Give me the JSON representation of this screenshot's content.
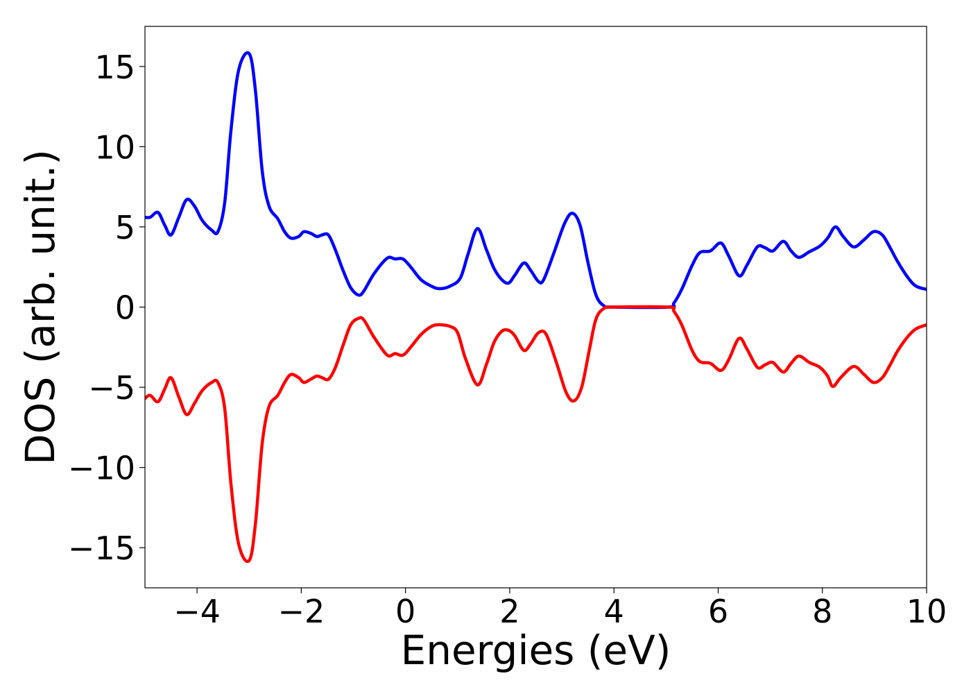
{
  "chart_data": {
    "type": "line",
    "title": "",
    "xlabel": "Energies (eV)",
    "ylabel": "DOS (arb. unit.)",
    "xlim": [
      -5,
      10
    ],
    "ylim": [
      -17.5,
      17.5
    ],
    "grid": false,
    "legend": "none",
    "x_ticks": [
      {
        "value": -4,
        "label": "−4"
      },
      {
        "value": -2,
        "label": "−2"
      },
      {
        "value": 0,
        "label": "0"
      },
      {
        "value": 2,
        "label": "2"
      },
      {
        "value": 4,
        "label": "4"
      },
      {
        "value": 6,
        "label": "6"
      },
      {
        "value": 8,
        "label": "8"
      },
      {
        "value": 10,
        "label": "10"
      }
    ],
    "y_ticks": [
      {
        "value": 15,
        "label": "15"
      },
      {
        "value": 10,
        "label": "10"
      },
      {
        "value": 5,
        "label": "5"
      },
      {
        "value": 0,
        "label": "0"
      },
      {
        "value": -5,
        "label": "−5"
      },
      {
        "value": -10,
        "label": "−10"
      },
      {
        "value": -15,
        "label": "−15"
      }
    ],
    "series": [
      {
        "color": "#0000ff",
        "points": [
          [
            -5.0,
            5.6
          ],
          [
            -4.9,
            5.6
          ],
          [
            -4.75,
            5.9
          ],
          [
            -4.62,
            5.1
          ],
          [
            -4.5,
            4.5
          ],
          [
            -4.35,
            5.6
          ],
          [
            -4.2,
            6.7
          ],
          [
            -4.05,
            6.3
          ],
          [
            -3.9,
            5.4
          ],
          [
            -3.72,
            4.8
          ],
          [
            -3.6,
            4.7
          ],
          [
            -3.47,
            6.5
          ],
          [
            -3.35,
            11.0
          ],
          [
            -3.2,
            14.8
          ],
          [
            -3.0,
            15.8
          ],
          [
            -2.88,
            13.5
          ],
          [
            -2.75,
            8.5
          ],
          [
            -2.62,
            6.3
          ],
          [
            -2.45,
            5.5
          ],
          [
            -2.32,
            4.7
          ],
          [
            -2.2,
            4.3
          ],
          [
            -2.05,
            4.4
          ],
          [
            -1.95,
            4.7
          ],
          [
            -1.82,
            4.6
          ],
          [
            -1.7,
            4.4
          ],
          [
            -1.6,
            4.5
          ],
          [
            -1.48,
            4.5
          ],
          [
            -1.35,
            3.6
          ],
          [
            -1.2,
            2.3
          ],
          [
            -1.05,
            1.2
          ],
          [
            -0.9,
            0.75
          ],
          [
            -0.8,
            1.0
          ],
          [
            -0.6,
            2.1
          ],
          [
            -0.35,
            3.05
          ],
          [
            -0.2,
            3.0
          ],
          [
            -0.05,
            3.0
          ],
          [
            0.1,
            2.5
          ],
          [
            0.3,
            1.7
          ],
          [
            0.5,
            1.3
          ],
          [
            0.65,
            1.15
          ],
          [
            0.85,
            1.3
          ],
          [
            1.05,
            1.8
          ],
          [
            1.2,
            3.3
          ],
          [
            1.38,
            4.9
          ],
          [
            1.55,
            3.6
          ],
          [
            1.7,
            2.4
          ],
          [
            1.85,
            1.7
          ],
          [
            1.98,
            1.5
          ],
          [
            2.1,
            2.0
          ],
          [
            2.27,
            2.75
          ],
          [
            2.4,
            2.3
          ],
          [
            2.55,
            1.6
          ],
          [
            2.65,
            1.7
          ],
          [
            2.85,
            3.4
          ],
          [
            3.05,
            5.2
          ],
          [
            3.2,
            5.85
          ],
          [
            3.35,
            5.1
          ],
          [
            3.5,
            2.8
          ],
          [
            3.65,
            0.8
          ],
          [
            3.8,
            0.1
          ],
          [
            4.0,
            0.0
          ],
          [
            5.05,
            0.0
          ],
          [
            5.15,
            0.25
          ],
          [
            5.3,
            1.1
          ],
          [
            5.5,
            2.6
          ],
          [
            5.65,
            3.4
          ],
          [
            5.85,
            3.5
          ],
          [
            6.05,
            4.0
          ],
          [
            6.2,
            3.2
          ],
          [
            6.4,
            1.95
          ],
          [
            6.55,
            2.6
          ],
          [
            6.75,
            3.75
          ],
          [
            6.9,
            3.7
          ],
          [
            7.05,
            3.5
          ],
          [
            7.25,
            4.1
          ],
          [
            7.4,
            3.5
          ],
          [
            7.55,
            3.1
          ],
          [
            7.75,
            3.45
          ],
          [
            7.95,
            3.8
          ],
          [
            8.1,
            4.3
          ],
          [
            8.25,
            5.0
          ],
          [
            8.4,
            4.4
          ],
          [
            8.6,
            3.75
          ],
          [
            8.8,
            4.2
          ],
          [
            8.98,
            4.7
          ],
          [
            9.15,
            4.5
          ],
          [
            9.3,
            3.7
          ],
          [
            9.45,
            2.8
          ],
          [
            9.65,
            1.8
          ],
          [
            9.8,
            1.3
          ],
          [
            10.0,
            1.1
          ]
        ]
      },
      {
        "color": "#ff0000",
        "points": [
          [
            -5.0,
            -5.7
          ],
          [
            -4.9,
            -5.5
          ],
          [
            -4.75,
            -5.9
          ],
          [
            -4.62,
            -5.1
          ],
          [
            -4.5,
            -4.4
          ],
          [
            -4.35,
            -5.6
          ],
          [
            -4.2,
            -6.7
          ],
          [
            -4.05,
            -6.0
          ],
          [
            -3.9,
            -5.2
          ],
          [
            -3.72,
            -4.7
          ],
          [
            -3.6,
            -4.7
          ],
          [
            -3.47,
            -6.3
          ],
          [
            -3.35,
            -11.0
          ],
          [
            -3.2,
            -14.8
          ],
          [
            -3.0,
            -15.8
          ],
          [
            -2.88,
            -13.5
          ],
          [
            -2.75,
            -8.5
          ],
          [
            -2.62,
            -6.2
          ],
          [
            -2.45,
            -5.5
          ],
          [
            -2.32,
            -4.7
          ],
          [
            -2.2,
            -4.2
          ],
          [
            -2.05,
            -4.4
          ],
          [
            -1.95,
            -4.7
          ],
          [
            -1.82,
            -4.5
          ],
          [
            -1.7,
            -4.3
          ],
          [
            -1.6,
            -4.4
          ],
          [
            -1.48,
            -4.5
          ],
          [
            -1.35,
            -3.8
          ],
          [
            -1.2,
            -2.4
          ],
          [
            -1.05,
            -1.1
          ],
          [
            -0.9,
            -0.7
          ],
          [
            -0.8,
            -0.8
          ],
          [
            -0.6,
            -1.9
          ],
          [
            -0.35,
            -3.0
          ],
          [
            -0.2,
            -2.9
          ],
          [
            -0.05,
            -3.0
          ],
          [
            0.1,
            -2.5
          ],
          [
            0.3,
            -1.7
          ],
          [
            0.5,
            -1.2
          ],
          [
            0.65,
            -1.1
          ],
          [
            0.85,
            -1.2
          ],
          [
            1.0,
            -1.6
          ],
          [
            1.15,
            -3.2
          ],
          [
            1.38,
            -4.85
          ],
          [
            1.55,
            -3.6
          ],
          [
            1.7,
            -2.2
          ],
          [
            1.85,
            -1.5
          ],
          [
            1.98,
            -1.45
          ],
          [
            2.1,
            -1.8
          ],
          [
            2.27,
            -2.7
          ],
          [
            2.4,
            -2.3
          ],
          [
            2.55,
            -1.6
          ],
          [
            2.7,
            -1.7
          ],
          [
            2.9,
            -3.5
          ],
          [
            3.08,
            -5.3
          ],
          [
            3.23,
            -5.85
          ],
          [
            3.38,
            -5.0
          ],
          [
            3.52,
            -2.8
          ],
          [
            3.65,
            -0.8
          ],
          [
            3.8,
            -0.1
          ],
          [
            4.0,
            0.0
          ],
          [
            5.05,
            0.0
          ],
          [
            5.15,
            -0.25
          ],
          [
            5.3,
            -1.1
          ],
          [
            5.5,
            -2.7
          ],
          [
            5.65,
            -3.4
          ],
          [
            5.85,
            -3.5
          ],
          [
            6.05,
            -3.95
          ],
          [
            6.2,
            -3.3
          ],
          [
            6.4,
            -1.95
          ],
          [
            6.55,
            -2.6
          ],
          [
            6.75,
            -3.75
          ],
          [
            6.9,
            -3.6
          ],
          [
            7.05,
            -3.45
          ],
          [
            7.25,
            -4.05
          ],
          [
            7.4,
            -3.5
          ],
          [
            7.55,
            -3.05
          ],
          [
            7.75,
            -3.45
          ],
          [
            7.95,
            -3.75
          ],
          [
            8.1,
            -4.3
          ],
          [
            8.2,
            -4.95
          ],
          [
            8.35,
            -4.4
          ],
          [
            8.6,
            -3.7
          ],
          [
            8.8,
            -4.2
          ],
          [
            8.98,
            -4.7
          ],
          [
            9.15,
            -4.4
          ],
          [
            9.3,
            -3.6
          ],
          [
            9.45,
            -2.7
          ],
          [
            9.65,
            -1.8
          ],
          [
            9.8,
            -1.35
          ],
          [
            10.0,
            -1.1
          ]
        ]
      }
    ]
  }
}
